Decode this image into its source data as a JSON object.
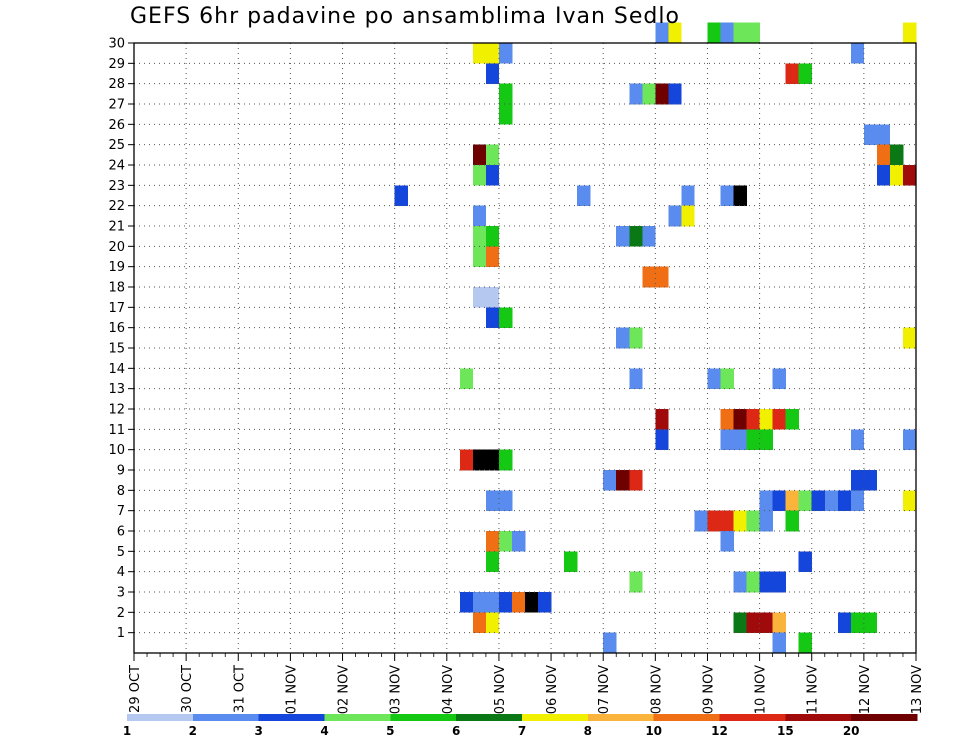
{
  "chart_data": {
    "type": "heatmap",
    "title": "GEFS 6hr padavine po ansamblima Ivan Sedlo",
    "xlabel": "",
    "ylabel": "",
    "x_tick_labels": [
      "29 OCT",
      "30 OCT",
      "31 OCT",
      "01 NOV",
      "02 NOV",
      "03 NOV",
      "04 NOV",
      "05 NOV",
      "06 NOV",
      "07 NOV",
      "08 NOV",
      "09 NOV",
      "10 NOV",
      "11 NOV",
      "12 NOV",
      "13 NOV"
    ],
    "x_unit": "6-hour steps from 29 OCT 00Z",
    "xlim": [
      0,
      60
    ],
    "y_tick_labels": [
      "1",
      "2",
      "3",
      "4",
      "5",
      "6",
      "7",
      "8",
      "9",
      "10",
      "11",
      "12",
      "13",
      "14",
      "15",
      "16",
      "17",
      "18",
      "19",
      "20",
      "21",
      "22",
      "23",
      "24",
      "25",
      "26",
      "27",
      "28",
      "29",
      "30"
    ],
    "ylim": [
      0,
      30
    ],
    "grid": true,
    "legend_levels": [
      "1",
      "2",
      "3",
      "4",
      "5",
      "6",
      "7",
      "8",
      "10",
      "12",
      "15",
      "20"
    ],
    "colors": [
      "#b4c8f0",
      "#5a8cf0",
      "#1446dc",
      "#6ee65a",
      "#14c814",
      "#0a7814",
      "#f0f000",
      "#fab43c",
      "#f06e14",
      "#dc2814",
      "#a00a0a",
      "#6e0000"
    ],
    "cells": [
      [
        30,
        40,
        1
      ],
      [
        30,
        41,
        6
      ],
      [
        30,
        44,
        4
      ],
      [
        30,
        45,
        1
      ],
      [
        30,
        46,
        3
      ],
      [
        30,
        47,
        3
      ],
      [
        30,
        59,
        6
      ],
      [
        29,
        26,
        6
      ],
      [
        29,
        27,
        6
      ],
      [
        29,
        28,
        1
      ],
      [
        29,
        55,
        1
      ],
      [
        28,
        27,
        2
      ],
      [
        28,
        50,
        9
      ],
      [
        28,
        51,
        4
      ],
      [
        27,
        28,
        4
      ],
      [
        27,
        38,
        1
      ],
      [
        27,
        39,
        3
      ],
      [
        27,
        40,
        11
      ],
      [
        27,
        41,
        2
      ],
      [
        26,
        28,
        4
      ],
      [
        25,
        56,
        1
      ],
      [
        25,
        57,
        1
      ],
      [
        24,
        26,
        11
      ],
      [
        24,
        27,
        3
      ],
      [
        24,
        57,
        8
      ],
      [
        24,
        58,
        5
      ],
      [
        23,
        26,
        3
      ],
      [
        23,
        27,
        2
      ],
      [
        23,
        57,
        2
      ],
      [
        23,
        58,
        6
      ],
      [
        23,
        59,
        10
      ],
      [
        22,
        20,
        2
      ],
      [
        22,
        34,
        1
      ],
      [
        22,
        42,
        1
      ],
      [
        22,
        45,
        1
      ],
      [
        22,
        46,
        12
      ],
      [
        21,
        26,
        1
      ],
      [
        21,
        41,
        1
      ],
      [
        21,
        42,
        6
      ],
      [
        20,
        26,
        3
      ],
      [
        20,
        27,
        4
      ],
      [
        20,
        37,
        1
      ],
      [
        20,
        38,
        5
      ],
      [
        20,
        39,
        1
      ],
      [
        19,
        26,
        3
      ],
      [
        19,
        27,
        8
      ],
      [
        18,
        39,
        8
      ],
      [
        18,
        40,
        8
      ],
      [
        17,
        26,
        0
      ],
      [
        17,
        27,
        0
      ],
      [
        16,
        27,
        2
      ],
      [
        16,
        28,
        4
      ],
      [
        15,
        37,
        1
      ],
      [
        15,
        38,
        3
      ],
      [
        15,
        59,
        6
      ],
      [
        13,
        25,
        3
      ],
      [
        13,
        38,
        1
      ],
      [
        13,
        44,
        1
      ],
      [
        13,
        45,
        3
      ],
      [
        13,
        49,
        1
      ],
      [
        11,
        40,
        10
      ],
      [
        11,
        45,
        8
      ],
      [
        11,
        46,
        11
      ],
      [
        11,
        47,
        9
      ],
      [
        11,
        48,
        6
      ],
      [
        11,
        49,
        9
      ],
      [
        11,
        50,
        4
      ],
      [
        10,
        40,
        2
      ],
      [
        10,
        45,
        1
      ],
      [
        10,
        46,
        1
      ],
      [
        10,
        47,
        4
      ],
      [
        10,
        48,
        4
      ],
      [
        10,
        55,
        1
      ],
      [
        10,
        59,
        1
      ],
      [
        9,
        25,
        9
      ],
      [
        9,
        26,
        12
      ],
      [
        9,
        27,
        12
      ],
      [
        9,
        28,
        4
      ],
      [
        8,
        36,
        1
      ],
      [
        8,
        37,
        11
      ],
      [
        8,
        38,
        9
      ],
      [
        8,
        55,
        2
      ],
      [
        8,
        56,
        2
      ],
      [
        7,
        27,
        1
      ],
      [
        7,
        28,
        1
      ],
      [
        7,
        48,
        1
      ],
      [
        7,
        49,
        2
      ],
      [
        7,
        50,
        7
      ],
      [
        7,
        51,
        3
      ],
      [
        7,
        52,
        2
      ],
      [
        7,
        53,
        1
      ],
      [
        7,
        54,
        2
      ],
      [
        7,
        55,
        1
      ],
      [
        7,
        59,
        6
      ],
      [
        6,
        43,
        1
      ],
      [
        6,
        44,
        9
      ],
      [
        6,
        45,
        9
      ],
      [
        6,
        46,
        6
      ],
      [
        6,
        47,
        3
      ],
      [
        6,
        48,
        1
      ],
      [
        6,
        50,
        4
      ],
      [
        5,
        27,
        8
      ],
      [
        5,
        28,
        3
      ],
      [
        5,
        29,
        1
      ],
      [
        5,
        45,
        1
      ],
      [
        4,
        27,
        4
      ],
      [
        4,
        33,
        4
      ],
      [
        4,
        51,
        2
      ],
      [
        3,
        38,
        3
      ],
      [
        3,
        46,
        1
      ],
      [
        3,
        47,
        3
      ],
      [
        3,
        48,
        2
      ],
      [
        3,
        49,
        2
      ],
      [
        2,
        25,
        2
      ],
      [
        2,
        26,
        1
      ],
      [
        2,
        27,
        1
      ],
      [
        2,
        28,
        2
      ],
      [
        2,
        29,
        8
      ],
      [
        2,
        30,
        12
      ],
      [
        2,
        31,
        2
      ],
      [
        1,
        26,
        8
      ],
      [
        1,
        27,
        6
      ],
      [
        1,
        46,
        5
      ],
      [
        1,
        47,
        10
      ],
      [
        1,
        48,
        10
      ],
      [
        1,
        49,
        7
      ],
      [
        1,
        54,
        2
      ],
      [
        1,
        55,
        4
      ],
      [
        1,
        56,
        4
      ],
      [
        0,
        36,
        1
      ],
      [
        0,
        49,
        1
      ],
      [
        0,
        51,
        4
      ]
    ]
  }
}
